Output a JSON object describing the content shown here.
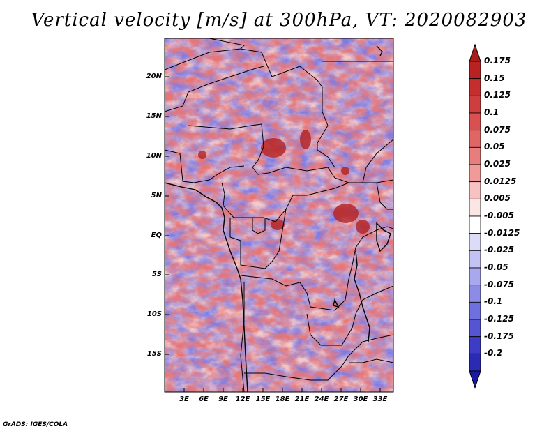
{
  "title": "Vertical velocity [m/s] at 300hPa, VT: 2020082903",
  "credit": "GrADS: IGES/COLA",
  "map": {
    "lat_labels": [
      "20N",
      "15N",
      "10N",
      "5N",
      "EQ",
      "5S",
      "10S",
      "15S"
    ],
    "lon_labels": [
      "3E",
      "6E",
      "9E",
      "12E",
      "15E",
      "18E",
      "21E",
      "24E",
      "27E",
      "30E",
      "33E"
    ],
    "lon_range": [
      0,
      35
    ],
    "lat_range": [
      -20,
      25
    ]
  },
  "colorbar": {
    "levels": [
      "0.175",
      "0.15",
      "0.125",
      "0.1",
      "0.075",
      "0.05",
      "0.025",
      "0.0125",
      "0.005",
      "-0.005",
      "-0.0125",
      "-0.025",
      "-0.05",
      "-0.075",
      "-0.1",
      "-0.125",
      "-0.175",
      "-0.2"
    ],
    "colors": [
      "#aa1c1c",
      "#b82222",
      "#c42e2e",
      "#cf3e3e",
      "#d95050",
      "#e06666",
      "#e87d7d",
      "#f09a9a",
      "#f7c2c2",
      "#fbe6e6",
      "#ffffff",
      "#dcdcf8",
      "#c2c2f4",
      "#a8a8ee",
      "#8c8ce6",
      "#6f6fde",
      "#5555d2",
      "#3c3cc4",
      "#2a2ab4",
      "#1a1aa0"
    ]
  }
}
